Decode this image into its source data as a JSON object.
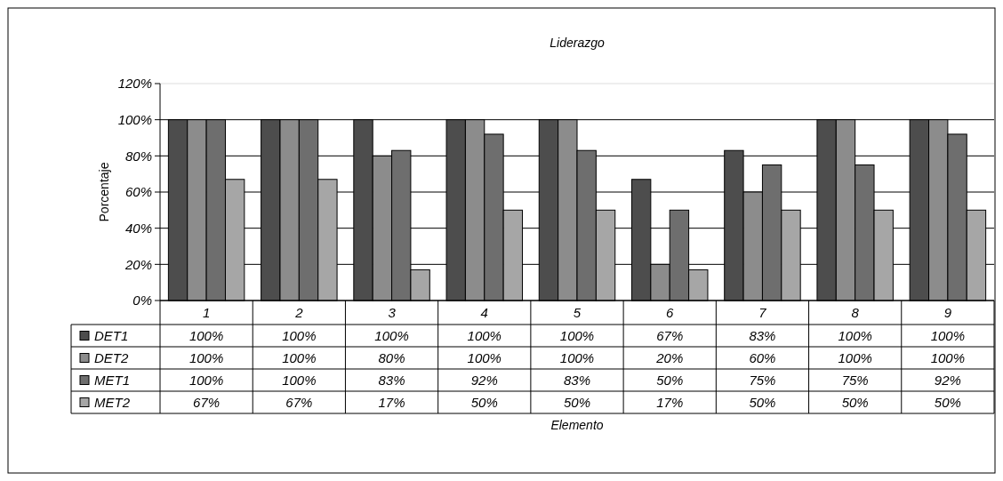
{
  "chart_data": {
    "type": "bar",
    "title": "Liderazgo",
    "annotations": [
      "Elemento"
    ],
    "ylabel": "Porcentaje",
    "categories": [
      "1",
      "2",
      "3",
      "4",
      "5",
      "6",
      "7",
      "8",
      "9"
    ],
    "series": [
      {
        "name": "DET1",
        "color": "#4d4d4d",
        "values": [
          100,
          100,
          100,
          100,
          100,
          67,
          83,
          100,
          100
        ],
        "value_labels": [
          "100%",
          "100%",
          "100%",
          "100%",
          "100%",
          "67%",
          "83%",
          "100%",
          "100%"
        ]
      },
      {
        "name": "DET2",
        "color": "#8c8c8c",
        "values": [
          100,
          100,
          80,
          100,
          100,
          20,
          60,
          100,
          100
        ],
        "value_labels": [
          "100%",
          "100%",
          "80%",
          "100%",
          "100%",
          "20%",
          "60%",
          "100%",
          "100%"
        ]
      },
      {
        "name": "MET1",
        "color": "#6e6e6e",
        "values": [
          100,
          100,
          83,
          92,
          83,
          50,
          75,
          75,
          92
        ],
        "value_labels": [
          "100%",
          "100%",
          "83%",
          "92%",
          "83%",
          "50%",
          "75%",
          "75%",
          "92%"
        ]
      },
      {
        "name": "MET2",
        "color": "#a6a6a6",
        "values": [
          67,
          67,
          17,
          50,
          50,
          17,
          50,
          50,
          50
        ],
        "value_labels": [
          "67%",
          "67%",
          "17%",
          "50%",
          "50%",
          "17%",
          "50%",
          "50%",
          "50%"
        ]
      }
    ],
    "ylim": [
      0,
      120
    ],
    "yticks": [
      {
        "value": 0,
        "label": "0%"
      },
      {
        "value": 20,
        "label": "20%"
      },
      {
        "value": 40,
        "label": "40%"
      },
      {
        "value": 60,
        "label": "60%"
      },
      {
        "value": 80,
        "label": "80%"
      },
      {
        "value": 100,
        "label": "100%"
      },
      {
        "value": 120,
        "label": "120%"
      }
    ],
    "grid": "y",
    "legend": "bottom"
  }
}
